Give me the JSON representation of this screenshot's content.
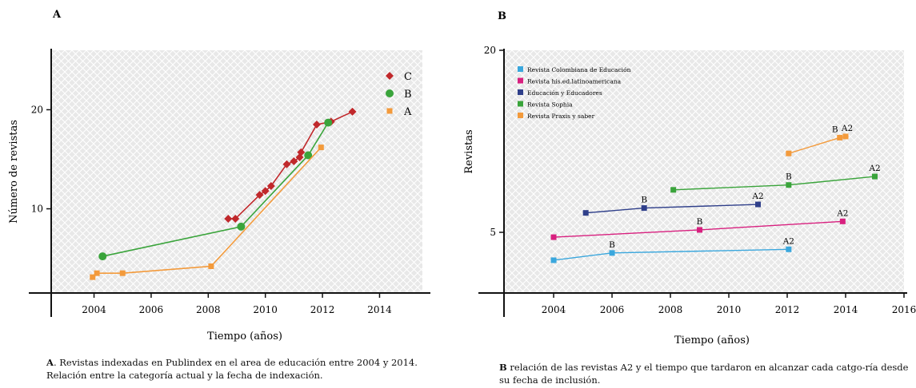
{
  "colors": {
    "grid_bg": "#e8e8e8",
    "grid_line": "#ffffff",
    "series_C": "#c0282b",
    "series_B": "#3aa43b",
    "series_A": "#f39a3b",
    "colombiana": "#3aa7dd",
    "his_ed": "#d8207f",
    "educadores": "#2f3f8a",
    "sophia": "#3aa43b",
    "praxis": "#f39a3b"
  },
  "chart_data": [
    {
      "type": "scatter",
      "panel_label": "A",
      "title": "",
      "xlabel": "Tiempo (años)",
      "ylabel": "Número de revistas",
      "xlim": [
        2002.5,
        2015.5
      ],
      "ylim": [
        1.5,
        26
      ],
      "xticks": [
        {
          "v": 2004,
          "label": "2004"
        },
        {
          "v": 2006,
          "label": "2006"
        },
        {
          "v": 2008,
          "label": "2008"
        },
        {
          "v": 2010,
          "label": "2010"
        },
        {
          "v": 2012,
          "label": "2012"
        },
        {
          "v": 2014,
          "label": "2014"
        }
      ],
      "yticks": [
        {
          "v": 10,
          "label": "10"
        },
        {
          "v": 20,
          "label": "20"
        }
      ],
      "legend_position": "top-right",
      "series": [
        {
          "name": "C",
          "color_key": "series_C",
          "marker": "diamond",
          "points": [
            [
              2008.7,
              9
            ],
            [
              2008.95,
              9
            ],
            [
              2009.8,
              11.4
            ],
            [
              2010.0,
              11.8
            ],
            [
              2010.2,
              12.3
            ],
            [
              2010.75,
              14.5
            ],
            [
              2011.0,
              14.8
            ],
            [
              2011.2,
              15.2
            ],
            [
              2011.25,
              15.7
            ],
            [
              2011.8,
              18.5
            ],
            [
              2012.3,
              18.8
            ],
            [
              2013.05,
              19.8
            ]
          ]
        },
        {
          "name": "B",
          "color_key": "series_B",
          "marker": "circle",
          "points": [
            [
              2004.3,
              5.2
            ],
            [
              2009.15,
              8.2
            ],
            [
              2011.5,
              15.4
            ],
            [
              2012.2,
              18.7
            ]
          ]
        },
        {
          "name": "A",
          "color_key": "series_A",
          "marker": "square",
          "points": [
            [
              2003.95,
              3.1
            ],
            [
              2004.1,
              3.5
            ],
            [
              2005.0,
              3.5
            ],
            [
              2008.1,
              4.2
            ],
            [
              2011.95,
              16.2
            ]
          ]
        }
      ]
    },
    {
      "type": "line",
      "panel_label": "B",
      "title": "",
      "xlabel": "Tiempo (años)",
      "ylabel": "Revistas",
      "xlim": [
        2002.3,
        2016
      ],
      "ylim": [
        0,
        20
      ],
      "xticks": [
        {
          "v": 2004,
          "label": "2004"
        },
        {
          "v": 2006,
          "label": "2006"
        },
        {
          "v": 2008,
          "label": "2008"
        },
        {
          "v": 2010,
          "label": "2010"
        },
        {
          "v": 2012,
          "label": "2012"
        },
        {
          "v": 2014,
          "label": "2014"
        },
        {
          "v": 2016,
          "label": "2016"
        }
      ],
      "yticks": [
        {
          "v": 5,
          "label": "5"
        },
        {
          "v": 20,
          "label": "20"
        }
      ],
      "legend_position": "top-left",
      "series": [
        {
          "name": "Revista Colombiana de Educación",
          "color_key": "colombiana",
          "points": [
            [
              2004.0,
              2.7
            ],
            [
              2006.0,
              3.3
            ],
            [
              2012.05,
              3.6
            ]
          ],
          "labels": [
            {
              "i": 1,
              "text": "B"
            },
            {
              "i": 2,
              "text": "A2"
            }
          ]
        },
        {
          "name": "Revista his.ed.latinoamericana",
          "color_key": "his_ed",
          "points": [
            [
              2004.0,
              4.6
            ],
            [
              2009.0,
              5.2
            ],
            [
              2013.9,
              5.9
            ]
          ],
          "labels": [
            {
              "i": 1,
              "text": "B"
            },
            {
              "i": 2,
              "text": "A2"
            }
          ]
        },
        {
          "name": "Educación y Educadores",
          "color_key": "educadores",
          "points": [
            [
              2005.1,
              6.6
            ],
            [
              2007.1,
              7.0
            ],
            [
              2011.0,
              7.3
            ]
          ],
          "labels": [
            {
              "i": 1,
              "text": "B"
            },
            {
              "i": 2,
              "text": "A2"
            }
          ]
        },
        {
          "name": "Revista Sophia",
          "color_key": "sophia",
          "points": [
            [
              2008.1,
              8.5
            ],
            [
              2012.05,
              8.9
            ],
            [
              2015.0,
              9.6
            ]
          ],
          "labels": [
            {
              "i": 1,
              "text": "B"
            },
            {
              "i": 2,
              "text": "A2"
            }
          ]
        },
        {
          "name": "Revista Praxis y saber",
          "color_key": "praxis",
          "points": [
            [
              2012.05,
              11.5
            ],
            [
              2013.8,
              12.8
            ],
            [
              2014.0,
              12.9
            ]
          ],
          "labels": [
            {
              "i": 1,
              "text": "B"
            },
            {
              "i": 2,
              "text": "A2"
            }
          ]
        }
      ]
    }
  ],
  "captions": {
    "A_strong": "A",
    "A_text": ". Revistas indexadas en Publindex en el area de educación entre 2004 y 2014. Relación entre la categoría actual y la fecha de indexación.",
    "B_strong": "B",
    "B_text": " relación de las revistas A2 y el tiempo que tardaron en alcanzar  cada catgo-ría desde su fecha de inclusión."
  }
}
